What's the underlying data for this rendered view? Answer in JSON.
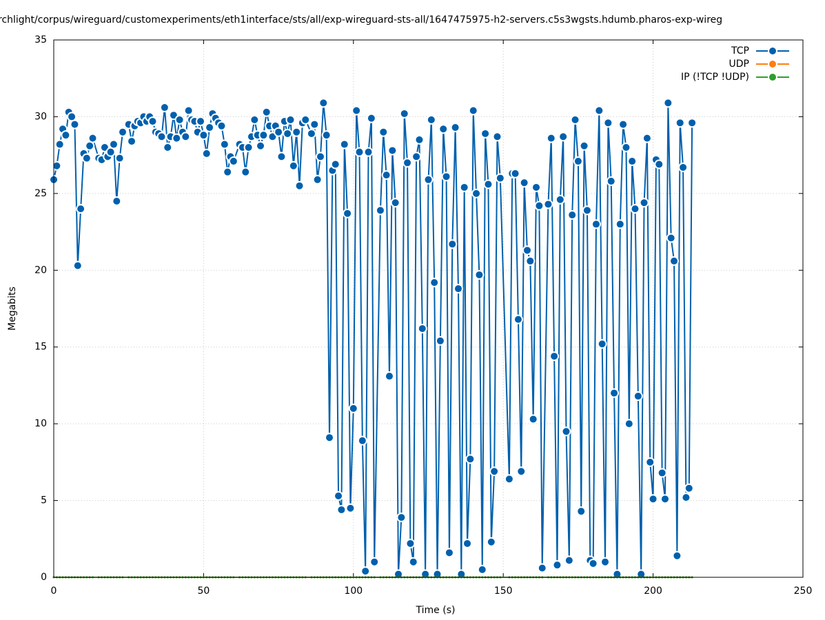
{
  "chart_data": {
    "type": "line",
    "title": "rchlight/corpus/wireguard/customexperiments/eth1interface/sts/all/exp-wireguard-sts-all/1647475975-h2-servers.c5s3wgsts.hdumb.pharos-exp-wireg",
    "xlabel": "Time (s)",
    "ylabel": "Megabits",
    "x": [
      0,
      1,
      2,
      3,
      4,
      5,
      6,
      7,
      8,
      9,
      10,
      11,
      12,
      13,
      15,
      16,
      17,
      18,
      19,
      20,
      21,
      22,
      23,
      25,
      26,
      27,
      28,
      29,
      30,
      31,
      32,
      33,
      34,
      35,
      36,
      37,
      38,
      39,
      40,
      41,
      42,
      43,
      44,
      45,
      46,
      47,
      48,
      49,
      50,
      51,
      52,
      53,
      54,
      55,
      56,
      57,
      58,
      59,
      60,
      62,
      63,
      64,
      65,
      66,
      67,
      68,
      69,
      70,
      71,
      72,
      73,
      74,
      75,
      76,
      77,
      78,
      79,
      80,
      81,
      82,
      83,
      84,
      86,
      87,
      88,
      89,
      90,
      91,
      92,
      93,
      94,
      95,
      96,
      97,
      98,
      99,
      100,
      101,
      102,
      103,
      104,
      105,
      106,
      107,
      109,
      110,
      111,
      112,
      113,
      114,
      115,
      116,
      117,
      118,
      119,
      120,
      121,
      122,
      123,
      124,
      125,
      126,
      127,
      128,
      129,
      130,
      131,
      132,
      133,
      134,
      135,
      136,
      137,
      138,
      139,
      140,
      141,
      142,
      143,
      144,
      145,
      146,
      147,
      148,
      149,
      152,
      153,
      154,
      155,
      156,
      157,
      158,
      159,
      160,
      161,
      162,
      163,
      165,
      166,
      167,
      168,
      169,
      170,
      171,
      172,
      173,
      174,
      175,
      176,
      177,
      178,
      179,
      180,
      181,
      182,
      183,
      184,
      185,
      186,
      187,
      188,
      189,
      190,
      191,
      192,
      193,
      194,
      195,
      196,
      197,
      198,
      199,
      200,
      201,
      202,
      203,
      204,
      205,
      206,
      207,
      208,
      209,
      210,
      211,
      212,
      213
    ],
    "series": [
      {
        "name": "TCP",
        "color": "#0060ad",
        "values": [
          25.9,
          26.8,
          28.2,
          29.2,
          28.8,
          30.3,
          30.0,
          29.5,
          20.3,
          24.0,
          27.6,
          27.3,
          28.1,
          28.6,
          27.3,
          27.2,
          28.0,
          27.4,
          27.7,
          28.2,
          24.5,
          27.3,
          29.0,
          29.5,
          28.4,
          29.4,
          29.7,
          29.6,
          30.0,
          29.7,
          30.0,
          29.7,
          29.0,
          28.9,
          28.7,
          30.6,
          28.0,
          28.7,
          30.1,
          28.6,
          29.8,
          29.0,
          28.7,
          30.4,
          29.8,
          29.7,
          29.0,
          29.7,
          28.8,
          27.6,
          29.3,
          30.2,
          29.9,
          29.6,
          29.4,
          28.2,
          26.4,
          27.4,
          27.1,
          28.2,
          28.0,
          26.4,
          28.0,
          28.7,
          29.8,
          28.8,
          28.1,
          28.8,
          30.3,
          29.4,
          28.7,
          29.4,
          29.0,
          27.4,
          29.7,
          28.9,
          29.8,
          26.8,
          29.0,
          25.5,
          29.6,
          29.8,
          28.9,
          29.5,
          25.9,
          27.4,
          30.9,
          28.8,
          9.1,
          26.5,
          26.9,
          5.3,
          4.4,
          28.2,
          23.7,
          4.5,
          11.0,
          30.4,
          27.7,
          8.9,
          0.4,
          27.7,
          29.9,
          1.0,
          23.9,
          29.0,
          26.2,
          13.1,
          27.8,
          24.4,
          0.2,
          3.9,
          30.2,
          27.0,
          2.2,
          1.0,
          27.4,
          28.5,
          16.2,
          0.2,
          25.9,
          29.8,
          19.2,
          0.2,
          15.4,
          29.2,
          26.1,
          1.6,
          21.7,
          29.3,
          18.8,
          0.2,
          25.4,
          2.2,
          7.7,
          30.4,
          25.0,
          19.7,
          0.5,
          28.9,
          25.6,
          2.3,
          6.9,
          28.7,
          26.0,
          6.4,
          26.3,
          26.3,
          16.8,
          6.9,
          25.7,
          21.3,
          20.6,
          10.3,
          25.4,
          24.2,
          0.6,
          24.3,
          28.6,
          14.4,
          0.8,
          24.6,
          28.7,
          9.5,
          1.1,
          23.6,
          29.8,
          27.1,
          4.3,
          28.1,
          23.9,
          1.1,
          0.9,
          23.0,
          30.4,
          15.2,
          1.0,
          29.6,
          25.8,
          12.0,
          0.2,
          23.0,
          29.5,
          28.0,
          10.0,
          27.1,
          24.0,
          11.8,
          0.2,
          24.4,
          28.6,
          7.5,
          5.1,
          27.2,
          26.9,
          6.8,
          5.1,
          30.9,
          22.1,
          20.6,
          1.4,
          29.6,
          26.7,
          5.2,
          5.8,
          29.6
        ]
      },
      {
        "name": "UDP",
        "color": "#ff7f0e",
        "values": [
          0,
          0,
          0,
          0,
          0,
          0,
          0,
          0,
          0,
          0,
          0,
          0,
          0,
          0,
          0,
          0,
          0,
          0,
          0,
          0,
          0,
          0,
          0,
          0,
          0,
          0,
          0,
          0,
          0,
          0,
          0,
          0,
          0,
          0,
          0,
          0,
          0,
          0,
          0,
          0,
          0,
          0,
          0,
          0,
          0,
          0,
          0,
          0,
          0,
          0,
          0,
          0,
          0,
          0,
          0,
          0,
          0,
          0,
          0,
          0,
          0,
          0,
          0,
          0,
          0,
          0,
          0,
          0,
          0,
          0,
          0,
          0,
          0,
          0,
          0,
          0,
          0,
          0,
          0,
          0,
          0,
          0,
          0,
          0,
          0,
          0,
          0,
          0,
          0,
          0,
          0,
          0,
          0,
          0,
          0,
          0,
          0,
          0,
          0,
          0,
          0,
          0,
          0,
          0,
          0,
          0,
          0,
          0,
          0,
          0,
          0,
          0,
          0,
          0,
          0,
          0,
          0,
          0,
          0,
          0,
          0,
          0,
          0,
          0,
          0,
          0,
          0,
          0,
          0,
          0,
          0,
          0,
          0,
          0,
          0,
          0,
          0,
          0,
          0,
          0,
          0,
          0,
          0,
          0,
          0,
          0,
          0,
          0,
          0,
          0,
          0,
          0,
          0,
          0,
          0,
          0,
          0,
          0,
          0,
          0,
          0,
          0,
          0,
          0,
          0,
          0,
          0,
          0,
          0,
          0,
          0,
          0,
          0,
          0,
          0,
          0,
          0,
          0,
          0,
          0,
          0,
          0,
          0,
          0,
          0,
          0,
          0,
          0,
          0,
          0,
          0,
          0,
          0,
          0,
          0,
          0,
          0,
          0,
          0,
          0,
          0,
          0,
          0,
          0,
          0,
          0
        ]
      },
      {
        "name": "IP (!TCP  !UDP)",
        "color": "#2ca02c",
        "values": [
          0,
          0,
          0,
          0,
          0,
          0,
          0,
          0,
          0,
          0,
          0,
          0,
          0,
          0,
          0,
          0,
          0,
          0,
          0,
          0,
          0,
          0,
          0,
          0,
          0,
          0,
          0,
          0,
          0,
          0,
          0,
          0,
          0,
          0,
          0,
          0,
          0,
          0,
          0,
          0,
          0,
          0,
          0,
          0,
          0,
          0,
          0,
          0,
          0,
          0,
          0,
          0,
          0,
          0,
          0,
          0,
          0,
          0,
          0,
          0,
          0,
          0,
          0,
          0,
          0,
          0,
          0,
          0,
          0,
          0,
          0,
          0,
          0,
          0,
          0,
          0,
          0,
          0,
          0,
          0,
          0,
          0,
          0,
          0,
          0,
          0,
          0,
          0,
          0,
          0,
          0,
          0,
          0,
          0,
          0,
          0,
          0,
          0,
          0,
          0,
          0,
          0,
          0,
          0,
          0,
          0,
          0,
          0,
          0,
          0,
          0,
          0,
          0,
          0,
          0,
          0,
          0,
          0,
          0,
          0,
          0,
          0,
          0,
          0,
          0,
          0,
          0,
          0,
          0,
          0,
          0,
          0,
          0,
          0,
          0,
          0,
          0,
          0,
          0,
          0,
          0,
          0,
          0,
          0,
          0,
          0,
          0,
          0,
          0,
          0,
          0,
          0,
          0,
          0,
          0,
          0,
          0,
          0,
          0,
          0,
          0,
          0,
          0,
          0,
          0,
          0,
          0,
          0,
          0,
          0,
          0,
          0,
          0,
          0,
          0,
          0,
          0,
          0,
          0,
          0,
          0,
          0,
          0,
          0,
          0,
          0,
          0,
          0,
          0,
          0,
          0,
          0,
          0,
          0,
          0,
          0,
          0,
          0,
          0,
          0,
          0,
          0,
          0,
          0,
          0,
          0
        ]
      }
    ],
    "xlim": [
      0,
      250
    ],
    "xticks": [
      0,
      50,
      100,
      150,
      200,
      250
    ],
    "ylim": [
      0,
      35
    ],
    "yticks": [
      0,
      5,
      10,
      15,
      20,
      25,
      30,
      35
    ],
    "grid": true,
    "legend": "top-right"
  }
}
